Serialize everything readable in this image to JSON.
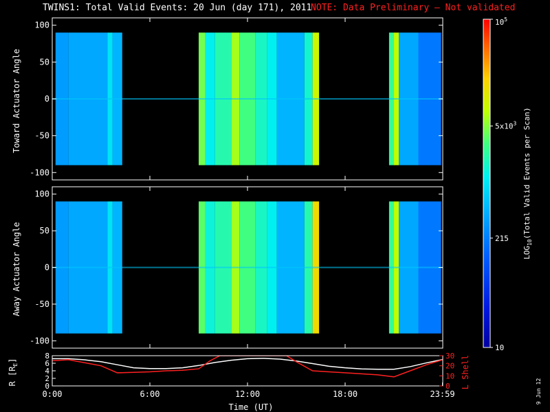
{
  "header": {
    "title": "TWINS1: Total Valid Events: 20 Jun (day 171), 2011",
    "note": "NOTE: Data Preliminary – Not validated"
  },
  "colors": {
    "title": "#ffffff",
    "note": "#ff2020",
    "axes": "#ffffff",
    "r_line": "#ffffff",
    "lshell_line": "#ff2020"
  },
  "chart_data": [
    {
      "type": "heatmap",
      "name": "toward",
      "ylabel": "Toward Actuator Angle",
      "ylim": [
        -110,
        110
      ],
      "yticks": [
        100,
        50,
        0,
        -50,
        -100
      ],
      "xlim": [
        0,
        24
      ],
      "data_ylim": [
        -90,
        90
      ],
      "grid": false,
      "bands": [
        {
          "start": 0.2,
          "end": 1.0,
          "level": 0.38
        },
        {
          "start": 1.0,
          "end": 3.4,
          "level": 0.4
        },
        {
          "start": 3.4,
          "end": 3.7,
          "level": 0.5
        },
        {
          "start": 3.7,
          "end": 4.3,
          "level": 0.42
        },
        {
          "start": 9.0,
          "end": 9.4,
          "level": 0.66
        },
        {
          "start": 9.4,
          "end": 10.0,
          "level": 0.52
        },
        {
          "start": 10.0,
          "end": 11.0,
          "level": 0.58
        },
        {
          "start": 11.0,
          "end": 11.5,
          "level": 0.7
        },
        {
          "start": 11.5,
          "end": 12.5,
          "level": 0.62
        },
        {
          "start": 12.5,
          "end": 13.2,
          "level": 0.56
        },
        {
          "start": 13.2,
          "end": 13.8,
          "level": 0.52
        },
        {
          "start": 13.8,
          "end": 15.5,
          "level": 0.42
        },
        {
          "start": 15.5,
          "end": 16.0,
          "level": 0.55
        },
        {
          "start": 16.0,
          "end": 16.4,
          "level": 0.74
        },
        {
          "start": 20.7,
          "end": 21.0,
          "level": 0.6
        },
        {
          "start": 21.0,
          "end": 21.3,
          "level": 0.72
        },
        {
          "start": 21.3,
          "end": 22.5,
          "level": 0.4
        },
        {
          "start": 22.5,
          "end": 23.9,
          "level": 0.32
        }
      ]
    },
    {
      "type": "heatmap",
      "name": "away",
      "ylabel": "Away Actuator Angle",
      "ylim": [
        -110,
        110
      ],
      "yticks": [
        100,
        50,
        0,
        -50,
        -100
      ],
      "xlim": [
        0,
        24
      ],
      "data_ylim": [
        -90,
        90
      ],
      "grid": false,
      "bands": [
        {
          "start": 0.2,
          "end": 1.0,
          "level": 0.38
        },
        {
          "start": 1.0,
          "end": 3.4,
          "level": 0.4
        },
        {
          "start": 3.4,
          "end": 3.7,
          "level": 0.5
        },
        {
          "start": 3.7,
          "end": 4.3,
          "level": 0.42
        },
        {
          "start": 9.0,
          "end": 9.4,
          "level": 0.64
        },
        {
          "start": 9.4,
          "end": 10.0,
          "level": 0.54
        },
        {
          "start": 10.0,
          "end": 11.0,
          "level": 0.58
        },
        {
          "start": 11.0,
          "end": 11.5,
          "level": 0.7
        },
        {
          "start": 11.5,
          "end": 12.5,
          "level": 0.62
        },
        {
          "start": 12.5,
          "end": 13.2,
          "level": 0.56
        },
        {
          "start": 13.2,
          "end": 13.8,
          "level": 0.52
        },
        {
          "start": 13.8,
          "end": 15.5,
          "level": 0.42
        },
        {
          "start": 15.5,
          "end": 16.0,
          "level": 0.58
        },
        {
          "start": 16.0,
          "end": 16.4,
          "level": 0.8
        },
        {
          "start": 20.7,
          "end": 21.0,
          "level": 0.6
        },
        {
          "start": 21.0,
          "end": 21.3,
          "level": 0.72
        },
        {
          "start": 21.3,
          "end": 22.5,
          "level": 0.4
        },
        {
          "start": 22.5,
          "end": 23.9,
          "level": 0.32
        }
      ]
    },
    {
      "type": "line",
      "name": "orbit",
      "xlabel": "Time (UT)",
      "xlim": [
        0,
        24
      ],
      "xticks": [
        {
          "value": 0,
          "label": "0:00"
        },
        {
          "value": 6,
          "label": "6:00"
        },
        {
          "value": 12,
          "label": "12:00"
        },
        {
          "value": 18,
          "label": "18:00"
        },
        {
          "value": 23.98,
          "label": "23:59"
        }
      ],
      "y_left": {
        "label": "R [R",
        "label_sub": "E",
        "label_end": "]",
        "ylim": [
          0,
          8
        ],
        "ticks": [
          8,
          6,
          4,
          2,
          0
        ]
      },
      "y_right": {
        "label": "L Shell",
        "ylim": [
          0,
          30
        ],
        "ticks": [
          30,
          20,
          10,
          0
        ]
      },
      "series": [
        {
          "axis": "left",
          "x": [
            0,
            1,
            2,
            3,
            4,
            5,
            6,
            7,
            8,
            9,
            10,
            11,
            12,
            13,
            14,
            15,
            16,
            17,
            18,
            19,
            20,
            21,
            22,
            23,
            24
          ],
          "y": [
            7.2,
            7.2,
            6.9,
            6.4,
            5.6,
            4.8,
            4.6,
            4.6,
            4.8,
            5.4,
            6.2,
            6.8,
            7.2,
            7.3,
            7.1,
            6.6,
            5.9,
            5.2,
            4.8,
            4.5,
            4.4,
            4.4,
            5.1,
            6.1,
            7.0
          ]
        },
        {
          "axis": "right",
          "x": [
            0,
            1,
            2,
            3,
            4,
            5,
            6,
            7,
            8,
            9,
            9.7,
            10.3,
            14.4,
            15,
            16,
            17,
            18,
            19,
            20,
            21,
            22,
            23,
            24
          ],
          "y": [
            25,
            26,
            23,
            20,
            13,
            13.5,
            14,
            15,
            15.5,
            17,
            25,
            30,
            30,
            24,
            15,
            14,
            13,
            12,
            11,
            9,
            15,
            21,
            26
          ]
        }
      ]
    }
  ],
  "colorbar": {
    "label": "LOG",
    "label_sub": "10",
    "label_end": "(Total Valid Events per Scan)",
    "ticks": [
      {
        "base": "10",
        "exp": "5",
        "value": 100000
      },
      {
        "base": "5x10",
        "exp": "3",
        "value": 5000
      },
      {
        "base": "215",
        "exp": "",
        "value": 215
      },
      {
        "base": "10",
        "exp": "",
        "value": 10
      }
    ],
    "range": [
      10,
      100000
    ]
  },
  "footer": {
    "date": "9 Jun 12"
  }
}
